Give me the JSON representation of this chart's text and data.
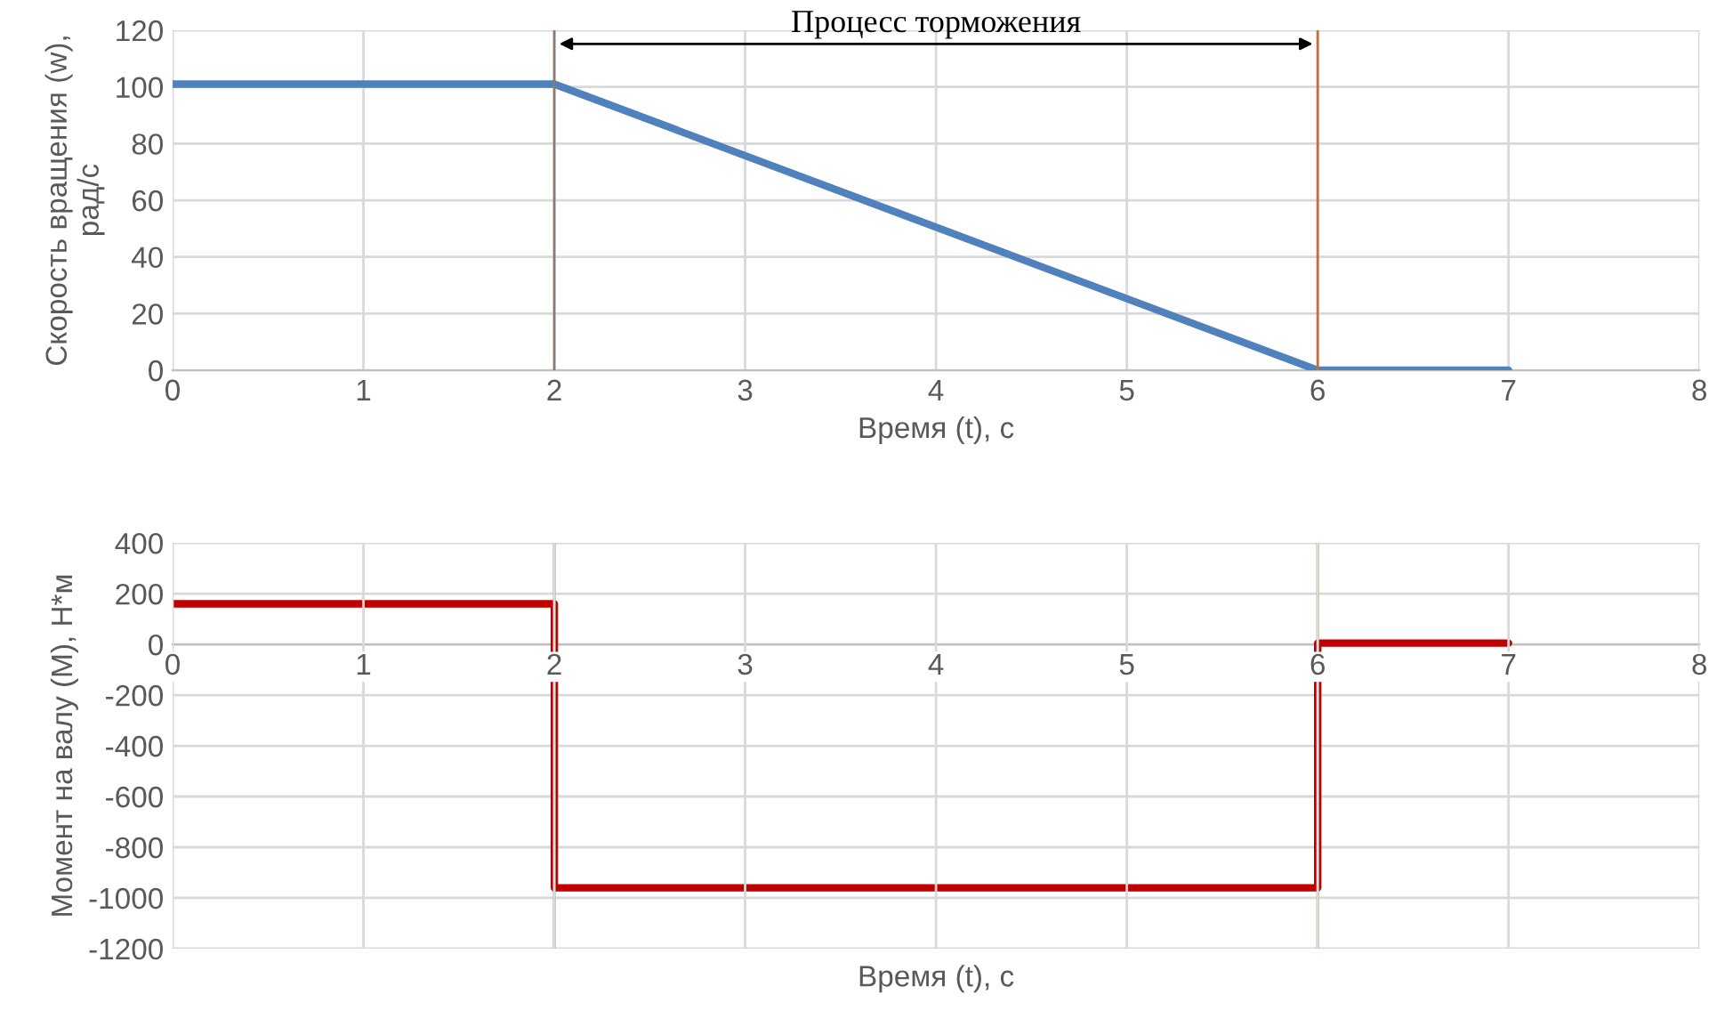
{
  "chart_data": [
    {
      "type": "line",
      "annotations": [
        "Процесс торможения"
      ],
      "xlabel": "Время (t), с",
      "ylabel": "Скорость вращения (w),\nрад/с",
      "xlim": [
        0,
        8
      ],
      "xticks": [
        0,
        1,
        2,
        3,
        4,
        5,
        6,
        7,
        8
      ],
      "ylim": [
        0,
        120
      ],
      "yticks": [
        0,
        20,
        40,
        60,
        80,
        100,
        120
      ],
      "grid": true,
      "series": [
        {
          "color": "#4f81bd",
          "x": [
            0,
            2,
            6,
            7
          ],
          "values": [
            101,
            101,
            0,
            0
          ]
        }
      ],
      "ref_lines": [
        {
          "axis": "x",
          "value": 2,
          "color": "#8c7b70"
        },
        {
          "axis": "x",
          "value": 6,
          "color": "#c0703c"
        }
      ]
    },
    {
      "type": "step",
      "xlabel": "Время (t), с",
      "ylabel": "Момент на валу (М), Н*м",
      "xlim": [
        0,
        8
      ],
      "xticks": [
        0,
        1,
        2,
        3,
        4,
        5,
        6,
        7,
        8
      ],
      "ylim": [
        -1200,
        400
      ],
      "yticks": [
        -1200,
        -1000,
        -800,
        -600,
        -400,
        -200,
        0,
        200,
        400
      ],
      "grid": true,
      "series": [
        {
          "color": "#c00000",
          "x": [
            0,
            2,
            6,
            7
          ],
          "values": [
            160,
            -960,
            5,
            5
          ]
        }
      ],
      "ref_lines": [
        {
          "axis": "x",
          "value": 2,
          "color": "#8c7b70"
        },
        {
          "axis": "x",
          "value": 6,
          "color": "#c0703c"
        }
      ]
    }
  ]
}
